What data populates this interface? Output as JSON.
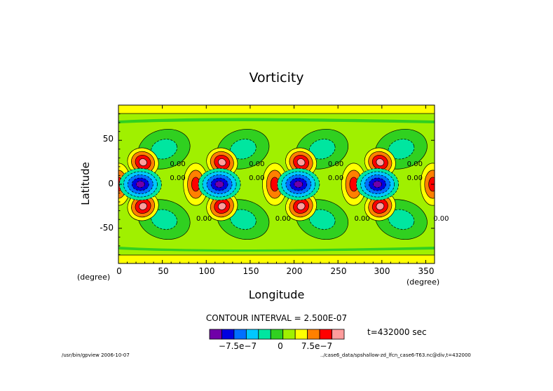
{
  "chart_data": {
    "type": "heatmap",
    "title": "Vorticity",
    "xlabel": "Longitude",
    "ylabel": "Latitude",
    "x_unit": "(degree)",
    "y_unit": "(degree)",
    "xlim": [
      0,
      360
    ],
    "ylim": [
      -90,
      90
    ],
    "x_ticks": [
      0,
      50,
      100,
      150,
      200,
      250,
      300,
      350
    ],
    "y_ticks": [
      50,
      0,
      -50
    ],
    "contour_interval_text": "CONTOUR INTERVAL = 2.500E-07",
    "contour_interval": 2.5e-07,
    "contour_labels": [
      "0.00",
      "0.00",
      "0.00",
      "0.00",
      "0.00",
      "0.00",
      "0.00",
      "0.00",
      "0.00",
      "0.00",
      "0.00",
      "0.00"
    ],
    "wave_count": 4,
    "features": {
      "equatorial_negative_centers_lon": [
        25,
        115,
        205,
        295
      ],
      "equatorial_positive_centers_lon": [
        0,
        88,
        178,
        268,
        358
      ],
      "offequator_positive_centers": [
        [
          28,
          25
        ],
        [
          28,
          -25
        ],
        [
          118,
          25
        ],
        [
          118,
          -25
        ],
        [
          208,
          25
        ],
        [
          208,
          -25
        ],
        [
          298,
          25
        ],
        [
          298,
          -25
        ]
      ],
      "weak_negative_centers": [
        [
          52,
          40
        ],
        [
          52,
          -40
        ],
        [
          142,
          40
        ],
        [
          142,
          -40
        ],
        [
          232,
          40
        ],
        [
          232,
          -40
        ],
        [
          322,
          40
        ],
        [
          322,
          -40
        ]
      ]
    },
    "colorbar": {
      "levels": [
        "<-1.0e-6",
        "-1.0e-6",
        "-7.5e-7",
        "-5.0e-7",
        "-2.5e-7",
        "0",
        "2.5e-7",
        "5.0e-7",
        "7.5e-7",
        "1.0e-6",
        ">1.0e-6"
      ],
      "colors": [
        "#7000a8",
        "#0000e0",
        "#0070ff",
        "#00c8ff",
        "#00e6a0",
        "#30d020",
        "#a0f000",
        "#ffff00",
        "#ff8000",
        "#ff0000",
        "#ff9c9c"
      ],
      "tick_labels": [
        "−7.5e−7",
        "0",
        "7.5e−7"
      ]
    },
    "time_label": "t=432000 sec"
  },
  "footer": {
    "left": "/usr/bin/gpview  2006-10-07",
    "right": "../case6_data/spshallow-zd_lfcn_case6-T63.nc@div,t=432000"
  }
}
